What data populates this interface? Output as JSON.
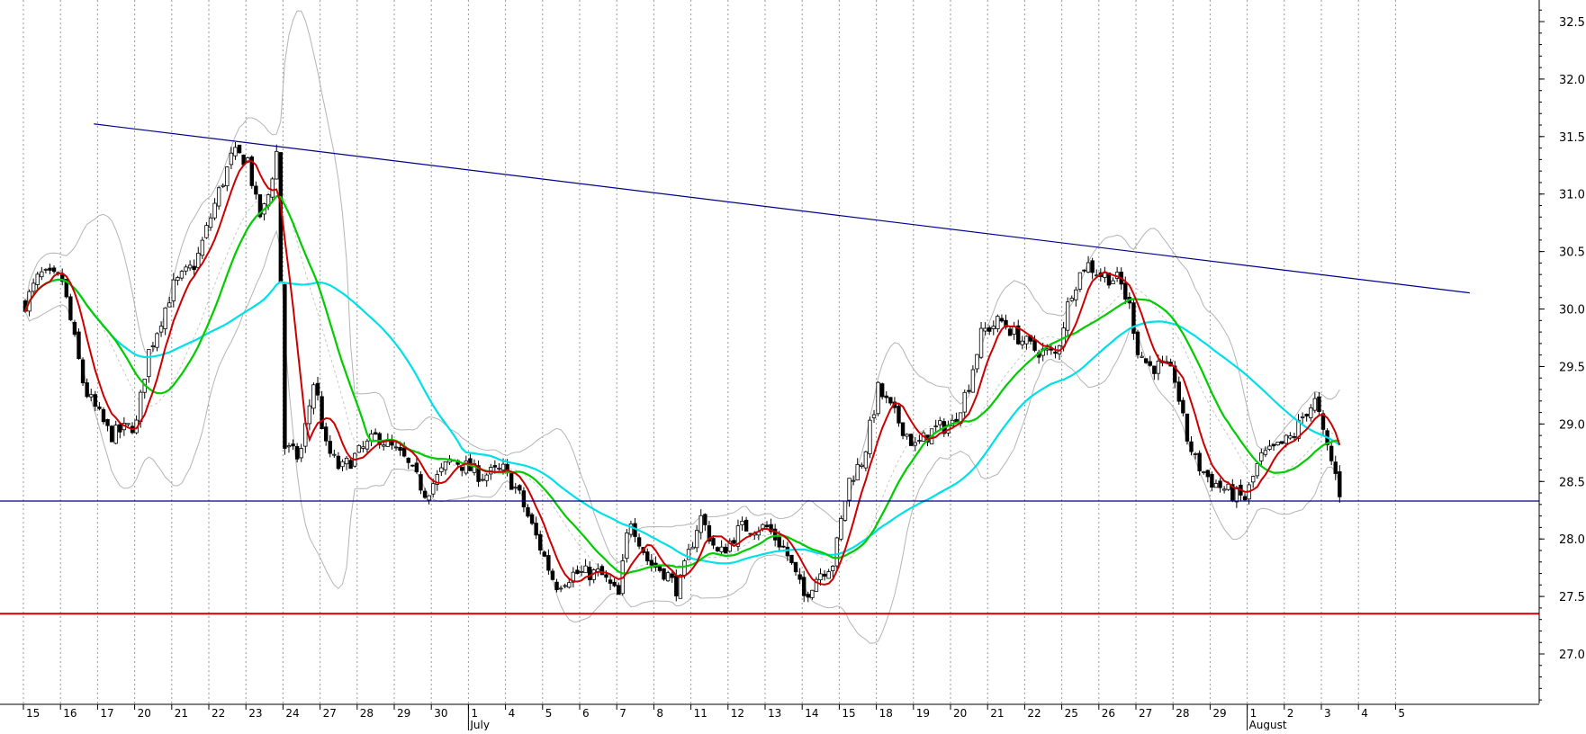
{
  "chart_data": {
    "type": "candlestick",
    "title": "",
    "xlabel": "",
    "ylabel": "",
    "ylim": [
      26.3,
      32.8
    ],
    "y_ticks": [
      "27.0",
      "27.5",
      "28.0",
      "28.5",
      "29.0",
      "29.5",
      "30.0",
      "30.5",
      "31.0",
      "31.5",
      "32.0",
      "32.5"
    ],
    "y_axis_side": "right",
    "grid": "vertical dotted lines at each day",
    "x_day_labels": [
      "15",
      "16",
      "17",
      "20",
      "21",
      "22",
      "23",
      "24",
      "27",
      "28",
      "29",
      "30",
      "1",
      "4",
      "5",
      "6",
      "7",
      "8",
      "11",
      "12",
      "13",
      "14",
      "15",
      "18",
      "19",
      "20",
      "21",
      "22",
      "25",
      "26",
      "27",
      "28",
      "29",
      "1",
      "2",
      "3",
      "4",
      "5"
    ],
    "x_month_labels": [
      {
        "label": "July",
        "at_day_index": 12
      },
      {
        "label": "August",
        "at_day_index": 33
      }
    ],
    "data_days": 35.6,
    "bars_per_day": 9,
    "series": [
      {
        "name": "",
        "kind": "price",
        "color": "#000000",
        "anchors": [
          [
            0,
            30.05
          ],
          [
            0.4,
            30.3
          ],
          [
            1,
            30.25
          ],
          [
            1.6,
            29.3
          ],
          [
            2.3,
            28.9
          ],
          [
            3,
            29.0
          ],
          [
            3.3,
            29.6
          ],
          [
            4,
            30.2
          ],
          [
            4.6,
            30.4
          ],
          [
            5.2,
            31.0
          ],
          [
            5.6,
            31.35
          ],
          [
            6,
            31.3
          ],
          [
            6.3,
            30.8
          ],
          [
            6.5,
            30.9
          ],
          [
            6.8,
            31.4
          ],
          [
            7.0,
            28.8
          ],
          [
            7.4,
            28.7
          ],
          [
            7.8,
            29.4
          ],
          [
            8.1,
            28.8
          ],
          [
            8.5,
            28.6
          ],
          [
            9,
            28.75
          ],
          [
            9.5,
            28.9
          ],
          [
            10.2,
            28.7
          ],
          [
            10.8,
            28.4
          ],
          [
            11.5,
            28.7
          ],
          [
            12.3,
            28.55
          ],
          [
            12.9,
            28.6
          ],
          [
            13.3,
            28.4
          ],
          [
            13.8,
            28.0
          ],
          [
            14.3,
            27.6
          ],
          [
            14.8,
            27.7
          ],
          [
            15.5,
            27.7
          ],
          [
            16.0,
            27.5
          ],
          [
            16.3,
            28.2
          ],
          [
            16.8,
            27.8
          ],
          [
            17.3,
            27.7
          ],
          [
            17.6,
            27.55
          ],
          [
            18.2,
            28.2
          ],
          [
            18.7,
            27.85
          ],
          [
            19.3,
            28.1
          ],
          [
            20,
            28.1
          ],
          [
            20.5,
            27.9
          ],
          [
            21,
            27.5
          ],
          [
            21.4,
            27.7
          ],
          [
            21.8,
            27.8
          ],
          [
            22.2,
            28.5
          ],
          [
            22.6,
            28.7
          ],
          [
            23.0,
            29.3
          ],
          [
            23.5,
            29.05
          ],
          [
            24,
            28.8
          ],
          [
            24.5,
            28.95
          ],
          [
            25,
            29.0
          ],
          [
            25.4,
            29.3
          ],
          [
            25.8,
            29.8
          ],
          [
            26.3,
            29.9
          ],
          [
            26.8,
            29.75
          ],
          [
            27.2,
            29.65
          ],
          [
            27.8,
            29.6
          ],
          [
            28.2,
            30.15
          ],
          [
            28.6,
            30.4
          ],
          [
            29.0,
            30.3
          ],
          [
            29.5,
            30.25
          ],
          [
            29.8,
            30.0
          ],
          [
            30.0,
            29.65
          ],
          [
            30.3,
            29.5
          ],
          [
            30.7,
            29.5
          ],
          [
            31.0,
            29.4
          ],
          [
            31.3,
            28.9
          ],
          [
            31.6,
            28.65
          ],
          [
            32.0,
            28.5
          ],
          [
            32.5,
            28.4
          ],
          [
            32.9,
            28.35
          ],
          [
            33.3,
            28.7
          ],
          [
            33.8,
            28.8
          ],
          [
            34.2,
            28.9
          ],
          [
            34.5,
            29.1
          ],
          [
            34.8,
            29.2
          ],
          [
            35.0,
            28.9
          ],
          [
            35.3,
            28.6
          ],
          [
            35.6,
            28.2
          ]
        ]
      },
      {
        "name": "",
        "kind": "short MA",
        "color": "#cc0000"
      },
      {
        "name": "",
        "kind": "medium MA",
        "color": "#00cc00"
      },
      {
        "name": "",
        "kind": "long MA",
        "color": "#00e0e8"
      },
      {
        "name": "",
        "kind": "bollinger bands",
        "color": "#b4b4b4"
      }
    ],
    "lines": [
      {
        "kind": "trendline",
        "color": "#00008b",
        "from": [
          1.9,
          31.61
        ],
        "to": [
          39.0,
          30.14
        ]
      },
      {
        "kind": "horizontal",
        "color": "#00008b",
        "y": 28.33
      },
      {
        "kind": "horizontal",
        "color": "#cc0000",
        "y": 27.35
      }
    ]
  }
}
